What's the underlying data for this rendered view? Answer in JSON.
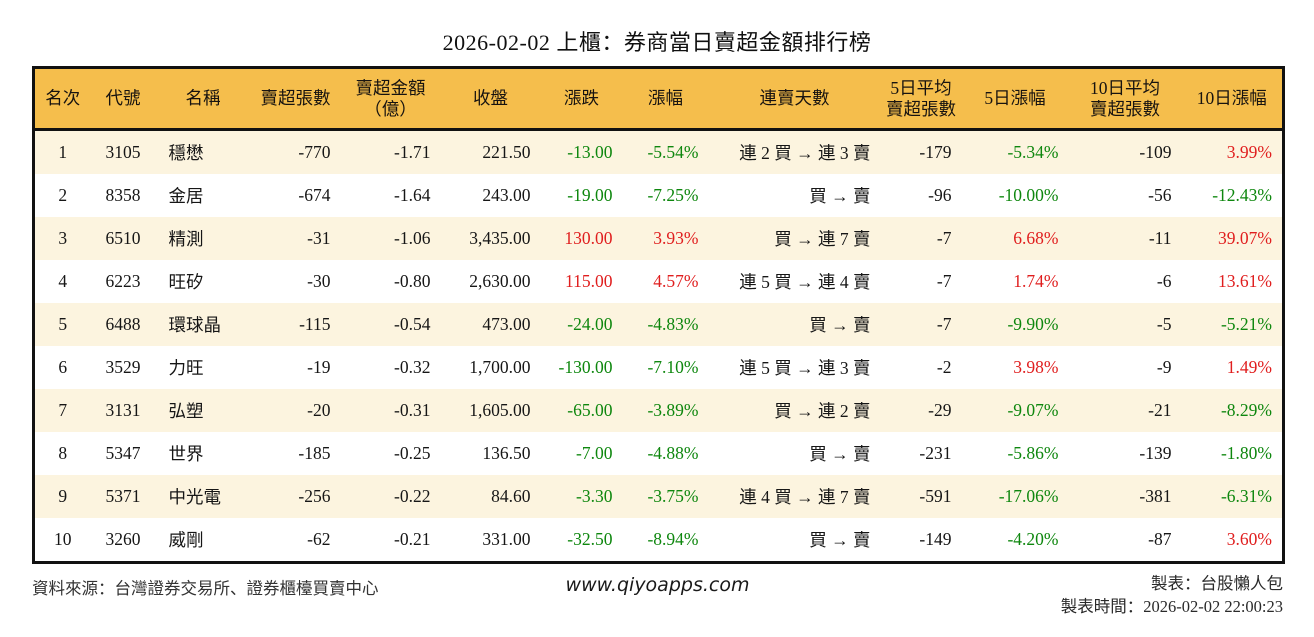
{
  "title": "2026-02-02 上櫃：券商當日賣超金額排行榜",
  "chart_data": {
    "type": "table",
    "title": "2026-02-02 上櫃：券商當日賣超金額排行榜",
    "columns": [
      {
        "key": "rank",
        "label": "名次"
      },
      {
        "key": "code",
        "label": "代號"
      },
      {
        "key": "name",
        "label": "名稱"
      },
      {
        "key": "sell_volume",
        "label": "賣超張數"
      },
      {
        "key": "sell_amount_100m",
        "label": "賣超金額\n（億）"
      },
      {
        "key": "close",
        "label": "收盤"
      },
      {
        "key": "change",
        "label": "漲跌"
      },
      {
        "key": "change_pct",
        "label": "漲幅"
      },
      {
        "key": "streak",
        "label": "連賣天數"
      },
      {
        "key": "avg5_sell_volume",
        "label": "5日平均\n賣超張數"
      },
      {
        "key": "change_5d_pct",
        "label": "5日漲幅"
      },
      {
        "key": "avg10_sell_volume",
        "label": "10日平均\n賣超張數"
      },
      {
        "key": "change_10d_pct",
        "label": "10日漲幅"
      }
    ],
    "colored_columns": [
      "change",
      "change_pct",
      "change_5d_pct",
      "change_10d_pct"
    ],
    "color_rule": "values starting with '-' use down color (green), otherwise up color (red)",
    "rows": [
      [
        "1",
        "3105",
        "穩懋",
        "-770",
        "-1.71",
        "221.50",
        "-13.00",
        "-5.54%",
        "連 2 買 → 連 3 賣",
        "-179",
        "-5.34%",
        "-109",
        "3.99%"
      ],
      [
        "2",
        "8358",
        "金居",
        "-674",
        "-1.64",
        "243.00",
        "-19.00",
        "-7.25%",
        "買 → 賣",
        "-96",
        "-10.00%",
        "-56",
        "-12.43%"
      ],
      [
        "3",
        "6510",
        "精測",
        "-31",
        "-1.06",
        "3,435.00",
        "130.00",
        "3.93%",
        "買 → 連 7 賣",
        "-7",
        "6.68%",
        "-11",
        "39.07%"
      ],
      [
        "4",
        "6223",
        "旺矽",
        "-30",
        "-0.80",
        "2,630.00",
        "115.00",
        "4.57%",
        "連 5 買 → 連 4 賣",
        "-7",
        "1.74%",
        "-6",
        "13.61%"
      ],
      [
        "5",
        "6488",
        "環球晶",
        "-115",
        "-0.54",
        "473.00",
        "-24.00",
        "-4.83%",
        "買 → 賣",
        "-7",
        "-9.90%",
        "-5",
        "-5.21%"
      ],
      [
        "6",
        "3529",
        "力旺",
        "-19",
        "-0.32",
        "1,700.00",
        "-130.00",
        "-7.10%",
        "連 5 買 → 連 3 賣",
        "-2",
        "3.98%",
        "-9",
        "1.49%"
      ],
      [
        "7",
        "3131",
        "弘塑",
        "-20",
        "-0.31",
        "1,605.00",
        "-65.00",
        "-3.89%",
        "買 → 連 2 賣",
        "-29",
        "-9.07%",
        "-21",
        "-8.29%"
      ],
      [
        "8",
        "5347",
        "世界",
        "-185",
        "-0.25",
        "136.50",
        "-7.00",
        "-4.88%",
        "買 → 賣",
        "-231",
        "-5.86%",
        "-139",
        "-1.80%"
      ],
      [
        "9",
        "5371",
        "中光電",
        "-256",
        "-0.22",
        "84.60",
        "-3.30",
        "-3.75%",
        "連 4 買 → 連 7 賣",
        "-591",
        "-17.06%",
        "-381",
        "-6.31%"
      ],
      [
        "10",
        "3260",
        "威剛",
        "-62",
        "-0.21",
        "331.00",
        "-32.50",
        "-8.94%",
        "買 → 賣",
        "-149",
        "-4.20%",
        "-87",
        "3.60%"
      ]
    ],
    "colors": {
      "up": "#e01e1e",
      "down": "#0e870e",
      "header_bg": "#f5be4c",
      "row_alt_bg": "#fcf4df",
      "border": "#111111"
    },
    "layout_hints": {
      "grid": "outer border and header separator only, no inner gridlines",
      "row_striping": "odd rows cream, even rows white"
    }
  },
  "footer": {
    "source": "資料來源：台灣證券交易所、證券櫃檯買賣中心",
    "website": "www.qiyoapps.com",
    "made_by": "製表：台股懶人包",
    "made_time": "製表時間：2026-02-02 22:00:23"
  }
}
